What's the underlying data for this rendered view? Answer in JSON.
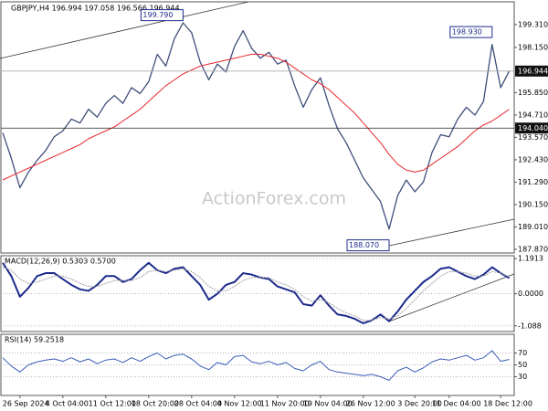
{
  "chart_data": [
    {
      "type": "line",
      "title": "GBPJPY,H4  196.994 197.058 196.566 196.944",
      "watermark": "ActionForex.com",
      "ylim": [
        187.68,
        200.47
      ],
      "yticks": [
        {
          "value": 199.31,
          "label": "199.310"
        },
        {
          "value": 198.15,
          "label": "198.150"
        },
        {
          "value": 195.85,
          "label": "195.850"
        },
        {
          "value": 194.71,
          "label": "194.710"
        },
        {
          "value": 193.57,
          "label": "193.570"
        },
        {
          "value": 192.43,
          "label": "192.430"
        },
        {
          "value": 191.29,
          "label": "191.290"
        },
        {
          "value": 190.15,
          "label": "190.150"
        },
        {
          "value": 189.01,
          "label": "189.010"
        },
        {
          "value": 187.87,
          "label": "187.870"
        }
      ],
      "series": [
        {
          "color": "#3f4f7a",
          "values": [
            193.8,
            192.5,
            191.0,
            191.8,
            192.4,
            192.9,
            193.6,
            193.9,
            194.5,
            194.3,
            195.0,
            194.6,
            195.3,
            195.7,
            195.3,
            196.1,
            195.8,
            196.4,
            197.8,
            197.2,
            198.6,
            199.4,
            198.9,
            197.4,
            196.5,
            197.3,
            196.9,
            198.2,
            199.0,
            198.1,
            197.6,
            197.9,
            197.3,
            197.5,
            196.2,
            195.1,
            196.0,
            196.6,
            195.2,
            194.0,
            193.3,
            192.4,
            191.5,
            190.9,
            190.3,
            188.9,
            190.6,
            191.4,
            190.8,
            191.3,
            192.8,
            193.7,
            193.6,
            194.5,
            195.1,
            194.7,
            195.4,
            198.3,
            196.1,
            196.944
          ]
        },
        {
          "color": "#e8262b",
          "values": [
            191.4,
            191.6,
            191.8,
            192.0,
            192.2,
            192.4,
            192.6,
            192.8,
            193.0,
            193.2,
            193.5,
            193.7,
            193.9,
            194.1,
            194.4,
            194.7,
            195.0,
            195.4,
            195.8,
            196.2,
            196.5,
            196.8,
            197.0,
            197.2,
            197.3,
            197.4,
            197.5,
            197.6,
            197.7,
            197.8,
            197.8,
            197.7,
            197.6,
            197.4,
            197.1,
            196.8,
            196.5,
            196.3,
            196.0,
            195.6,
            195.2,
            194.8,
            194.3,
            193.8,
            193.3,
            192.7,
            192.2,
            191.9,
            191.8,
            191.9,
            192.2,
            192.5,
            192.8,
            193.1,
            193.5,
            193.9,
            194.2,
            194.4,
            194.7,
            195.0
          ]
        }
      ],
      "annotations": [
        {
          "label": "199.790",
          "value": 199.79,
          "x": 21,
          "style": "callout"
        },
        {
          "label": "198.930",
          "value": 198.93,
          "x": 57,
          "style": "callout"
        },
        {
          "label": "188.070",
          "value": 188.07,
          "x": 45,
          "style": "callout"
        },
        {
          "label": "194.040",
          "value": 194.04,
          "style": "level"
        },
        {
          "label": "196.944",
          "value": 196.944,
          "style": "last"
        }
      ]
    },
    {
      "type": "line",
      "title": "MACD(12,26,9) 0.5303 0.5700",
      "ylim": [
        -1.28,
        1.29
      ],
      "yticks": [
        1.1913,
        {
          "value": 0,
          "label": "0.0000"
        },
        -1.088
      ],
      "series": [
        {
          "color": "#1c2a8c",
          "values": [
            1.05,
            0.6,
            -0.1,
            0.2,
            0.6,
            0.7,
            0.7,
            0.5,
            0.3,
            0.15,
            0.1,
            0.3,
            0.6,
            0.6,
            0.4,
            0.5,
            0.8,
            1.05,
            0.8,
            0.7,
            0.85,
            0.9,
            0.6,
            0.3,
            -0.2,
            0.0,
            0.3,
            0.4,
            0.7,
            0.65,
            0.55,
            0.5,
            0.25,
            0.15,
            0.05,
            -0.35,
            -0.4,
            -0.05,
            -0.4,
            -0.7,
            -0.75,
            -0.85,
            -1.0,
            -0.9,
            -0.7,
            -0.93,
            -0.6,
            -0.2,
            0.1,
            0.4,
            0.6,
            0.85,
            0.9,
            0.75,
            0.6,
            0.5,
            0.65,
            0.9,
            0.7,
            0.5303
          ]
        },
        {
          "color": "#a0a0a0",
          "values": [
            0.9,
            0.8,
            0.5,
            0.35,
            0.4,
            0.5,
            0.6,
            0.6,
            0.5,
            0.35,
            0.25,
            0.25,
            0.35,
            0.45,
            0.45,
            0.45,
            0.55,
            0.75,
            0.8,
            0.75,
            0.8,
            0.85,
            0.75,
            0.55,
            0.25,
            0.1,
            0.1,
            0.25,
            0.45,
            0.55,
            0.55,
            0.55,
            0.4,
            0.3,
            0.15,
            -0.1,
            -0.25,
            -0.2,
            -0.3,
            -0.5,
            -0.65,
            -0.75,
            -0.9,
            -0.9,
            -0.8,
            -0.85,
            -0.75,
            -0.5,
            -0.2,
            0.1,
            0.35,
            0.6,
            0.75,
            0.75,
            0.7,
            0.6,
            0.6,
            0.75,
            0.7,
            0.57
          ]
        }
      ]
    },
    {
      "type": "line",
      "title": "RSI(14) 59.2518",
      "ylim": [
        0,
        100
      ],
      "yticks": [
        70,
        50,
        30
      ],
      "categories": [
        null,
        null,
        "26 Sep 2024",
        null,
        null,
        null,
        null,
        "4 Oct 04:00",
        null,
        null,
        null,
        null,
        "11 Oct 12:00",
        null,
        null,
        null,
        null,
        "18 Oct 20:00",
        null,
        null,
        null,
        null,
        "28 Oct 04:00",
        null,
        null,
        null,
        null,
        "4 Nov 12:00",
        null,
        null,
        null,
        null,
        "11 Nov 20:00",
        null,
        null,
        null,
        null,
        "19 Nov 04:00",
        null,
        null,
        null,
        null,
        "26 Nov 12:00",
        null,
        null,
        null,
        null,
        null,
        "3 Dec 20:00",
        null,
        null,
        null,
        "11 Dec 04:00",
        null,
        null,
        null,
        null,
        null,
        "18 Dec 12:00",
        null
      ],
      "series": [
        {
          "color": "#3a5bb8",
          "values": [
            62,
            48,
            38,
            50,
            55,
            58,
            60,
            56,
            62,
            55,
            60,
            52,
            58,
            60,
            54,
            62,
            56,
            64,
            70,
            60,
            66,
            68,
            60,
            48,
            42,
            54,
            50,
            64,
            66,
            55,
            52,
            56,
            50,
            54,
            44,
            40,
            50,
            56,
            42,
            38,
            36,
            34,
            32,
            34,
            30,
            24,
            40,
            46,
            38,
            45,
            55,
            60,
            58,
            62,
            66,
            58,
            62,
            74,
            56,
            59.2518
          ]
        }
      ]
    }
  ]
}
